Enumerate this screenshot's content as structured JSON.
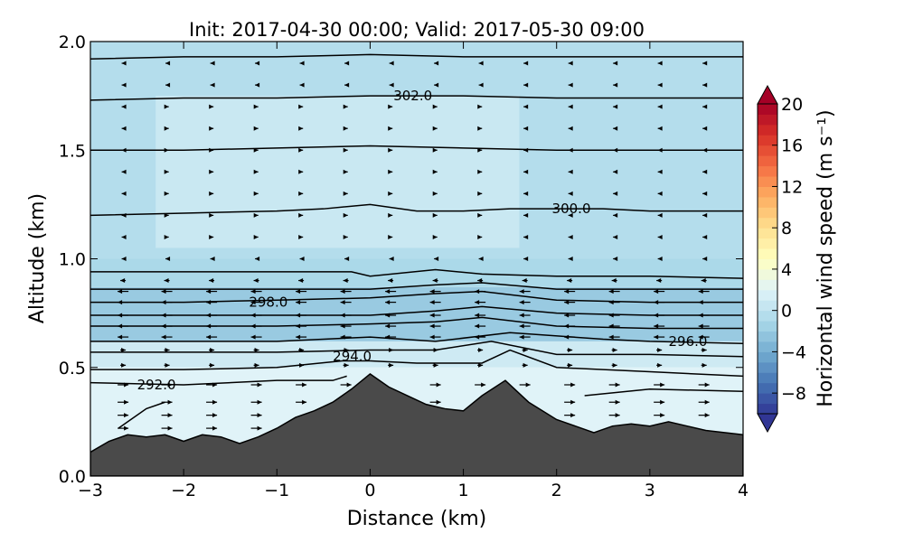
{
  "chart_data": {
    "type": "contour",
    "title": "Init: 2017-04-30 00:00; Valid: 2017-05-30 09:00",
    "xlabel": "Distance (km)",
    "ylabel": "Altitude (km)",
    "xlim": [
      -3,
      4
    ],
    "ylim": [
      0.0,
      2.0
    ],
    "x_ticks": [
      "−3",
      "−2",
      "−1",
      "0",
      "1",
      "2",
      "3",
      "4"
    ],
    "y_ticks": [
      "0.0",
      "0.5",
      "1.0",
      "1.5",
      "2.0"
    ],
    "colorbar": {
      "label": "Horizontal wind speed (m s⁻¹)",
      "range": [
        -10,
        20
      ],
      "ticks": [
        "−8",
        "−4",
        "0",
        "4",
        "8",
        "12",
        "16",
        "20"
      ],
      "colormap": "RdYlBu_r",
      "extend": "both"
    },
    "contour_labels": [
      "292.0",
      "294.0",
      "296.0",
      "298.0",
      "300.0",
      "302.0"
    ],
    "terrain": {
      "x": [
        -3.0,
        -2.8,
        -2.6,
        -2.4,
        -2.2,
        -2.0,
        -1.8,
        -1.6,
        -1.4,
        -1.2,
        -1.0,
        -0.8,
        -0.6,
        -0.4,
        -0.2,
        0.0,
        0.2,
        0.4,
        0.6,
        0.8,
        1.0,
        1.2,
        1.45,
        1.7,
        2.0,
        2.2,
        2.4,
        2.6,
        2.8,
        3.0,
        3.2,
        3.4,
        3.6,
        3.8,
        4.0
      ],
      "y": [
        0.11,
        0.16,
        0.19,
        0.18,
        0.19,
        0.16,
        0.19,
        0.18,
        0.15,
        0.18,
        0.22,
        0.27,
        0.3,
        0.34,
        0.4,
        0.47,
        0.41,
        0.37,
        0.33,
        0.31,
        0.3,
        0.37,
        0.44,
        0.34,
        0.26,
        0.23,
        0.2,
        0.23,
        0.24,
        0.23,
        0.25,
        0.23,
        0.21,
        0.2,
        0.19
      ]
    },
    "isentropes": [
      {
        "value": 292.0,
        "label": "292.0",
        "label_x": -2.5,
        "label_y": 0.42,
        "x": [
          -3.0,
          -2.0,
          -1.0,
          -0.4,
          -0.25
        ],
        "y": [
          0.43,
          0.42,
          0.44,
          0.44,
          0.46
        ]
      },
      {
        "value": 294.0,
        "label": "294.0",
        "label_x": -0.4,
        "label_y": 0.55,
        "x": [
          -3.0,
          -2.0,
          -1.0,
          -0.3,
          0.0,
          0.5,
          1.2,
          1.5,
          2.0,
          3.0,
          4.0
        ],
        "y": [
          0.49,
          0.49,
          0.5,
          0.53,
          0.53,
          0.52,
          0.52,
          0.58,
          0.5,
          0.48,
          0.46
        ]
      },
      {
        "value": 296.0,
        "label": "296.0",
        "label_x": 3.2,
        "label_y": 0.62,
        "x": [
          -3.0,
          -2.0,
          -1.0,
          0.0,
          0.7,
          1.5,
          2.5,
          3.0,
          4.0
        ],
        "y": [
          0.62,
          0.62,
          0.62,
          0.64,
          0.62,
          0.66,
          0.63,
          0.62,
          0.61
        ]
      },
      {
        "value": 298.0,
        "label": "298.0",
        "label_x": -1.3,
        "label_y": 0.8,
        "x": [
          -3.0,
          -2.0,
          -1.0,
          0.0,
          0.7,
          1.2,
          2.0,
          3.0,
          4.0
        ],
        "y": [
          0.8,
          0.8,
          0.81,
          0.82,
          0.84,
          0.85,
          0.81,
          0.8,
          0.8
        ]
      },
      {
        "value": 300.0,
        "label": "300.0",
        "label_x": 1.95,
        "label_y": 1.23,
        "x": [
          -3.0,
          -2.0,
          -1.0,
          -0.5,
          0.0,
          0.5,
          1.0,
          1.5,
          2.5,
          3.0,
          4.0
        ],
        "y": [
          1.2,
          1.21,
          1.22,
          1.23,
          1.25,
          1.22,
          1.22,
          1.23,
          1.23,
          1.22,
          1.22
        ]
      },
      {
        "value": 302.0,
        "label": "302.0",
        "label_x": 0.25,
        "label_y": 1.75,
        "x": [
          -3.0,
          -2.0,
          -1.0,
          0.0,
          1.0,
          2.0,
          3.0,
          4.0
        ],
        "y": [
          1.73,
          1.74,
          1.74,
          1.75,
          1.75,
          1.74,
          1.74,
          1.74
        ]
      },
      {
        "value": null,
        "label": "",
        "x": [
          -3.0,
          -2.0,
          -1.0,
          0.0,
          1.0,
          2.0,
          3.0,
          4.0
        ],
        "y": [
          1.92,
          1.93,
          1.93,
          1.94,
          1.93,
          1.93,
          1.93,
          1.93
        ]
      },
      {
        "value": null,
        "label": "",
        "x": [
          -3.0,
          -2.0,
          -1.0,
          0.0,
          1.0,
          2.0,
          3.0,
          4.0
        ],
        "y": [
          1.5,
          1.5,
          1.51,
          1.52,
          1.51,
          1.5,
          1.5,
          1.5
        ]
      },
      {
        "value": null,
        "label": "",
        "x": [
          -3.0,
          -2.0,
          -1.0,
          -0.2,
          0.0,
          0.7,
          1.2,
          2.0,
          3.0,
          4.0
        ],
        "y": [
          0.94,
          0.94,
          0.94,
          0.94,
          0.92,
          0.95,
          0.93,
          0.92,
          0.92,
          0.91
        ]
      },
      {
        "value": null,
        "label": "",
        "x": [
          -3.0,
          -2.0,
          -1.0,
          0.0,
          0.7,
          1.2,
          2.0,
          3.0,
          4.0
        ],
        "y": [
          0.86,
          0.86,
          0.86,
          0.86,
          0.88,
          0.89,
          0.86,
          0.86,
          0.86
        ]
      },
      {
        "value": null,
        "label": "",
        "x": [
          -3.0,
          -2.0,
          -1.0,
          0.0,
          0.7,
          1.2,
          2.0,
          3.0,
          4.0
        ],
        "y": [
          0.74,
          0.74,
          0.74,
          0.74,
          0.76,
          0.78,
          0.75,
          0.74,
          0.74
        ]
      },
      {
        "value": null,
        "label": "",
        "x": [
          -3.0,
          -2.0,
          -1.0,
          0.0,
          0.7,
          1.2,
          2.0,
          3.0,
          4.0
        ],
        "y": [
          0.69,
          0.69,
          0.69,
          0.7,
          0.71,
          0.73,
          0.69,
          0.68,
          0.68
        ]
      },
      {
        "value": null,
        "label": "",
        "x": [
          -3.0,
          -2.0,
          -1.0,
          0.0,
          0.7,
          1.3,
          2.0,
          3.0,
          4.0
        ],
        "y": [
          0.57,
          0.57,
          0.57,
          0.58,
          0.58,
          0.62,
          0.56,
          0.56,
          0.55
        ]
      },
      {
        "value": null,
        "label": "",
        "x": [
          2.3,
          3.0,
          4.0
        ],
        "y": [
          0.37,
          0.4,
          0.39
        ]
      },
      {
        "value": null,
        "label": "",
        "x": [
          -2.7,
          -2.6,
          -2.4,
          -2.2
        ],
        "y": [
          0.22,
          0.25,
          0.31,
          0.34
        ]
      }
    ],
    "wind_regions": [
      {
        "y_from": 0.0,
        "y_to": 0.5,
        "wind": 2
      },
      {
        "y_from": 0.5,
        "y_to": 0.62,
        "wind": 1
      },
      {
        "y_from": 0.62,
        "y_to": 0.87,
        "wind": -2
      },
      {
        "y_from": 0.87,
        "y_to": 1.0,
        "wind": -1
      },
      {
        "y_from": 1.0,
        "y_to": 2.0,
        "wind": -0.5
      },
      {
        "x_from": -2.3,
        "x_to": 1.6,
        "y_from": 1.05,
        "y_to": 1.75,
        "wind": 0.7
      }
    ],
    "vector_grid": {
      "x": [
        -2.65,
        -2.18,
        -1.7,
        -1.22,
        -0.74,
        -0.26,
        0.22,
        0.7,
        1.18,
        1.66,
        2.14,
        2.62,
        3.1,
        3.58
      ],
      "y": [
        0.22,
        0.28,
        0.34,
        0.42,
        0.51,
        0.58,
        0.64,
        0.69,
        0.74,
        0.8,
        0.85,
        0.9,
        1.0,
        1.1,
        1.2,
        1.3,
        1.4,
        1.5,
        1.6,
        1.7,
        1.8,
        1.9
      ]
    }
  }
}
